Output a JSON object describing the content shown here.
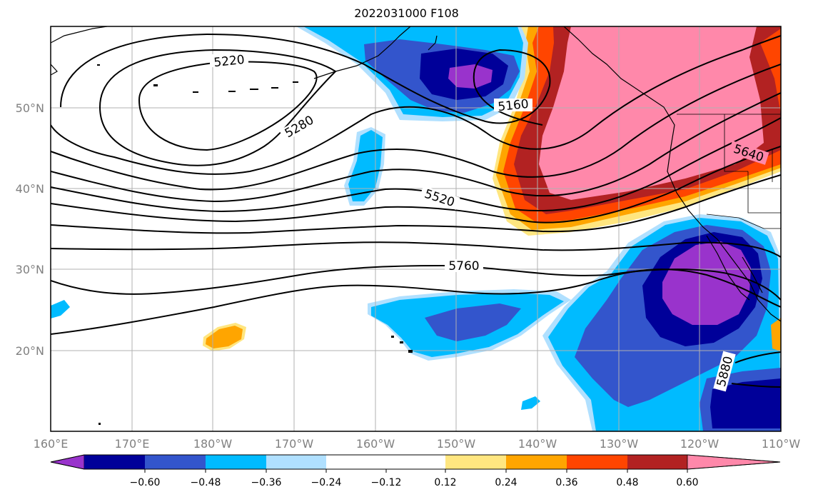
{
  "title": "2022031000 F108",
  "lon_ticks": [
    "160°E",
    "170°E",
    "180°W",
    "170°W",
    "160°W",
    "150°W",
    "140°W",
    "130°W",
    "120°W",
    "110°W"
  ],
  "lat_ticks": [
    "50°N",
    "40°N",
    "30°N",
    "20°N"
  ],
  "contour_labels": [
    "5220",
    "5280",
    "5160",
    "5520",
    "5640",
    "5760",
    "5880"
  ],
  "colorbar": {
    "ticks": [
      "−0.60",
      "−0.48",
      "−0.36",
      "−0.24",
      "−0.12",
      "0.12",
      "0.24",
      "0.36",
      "0.48",
      "0.60"
    ],
    "colors": [
      "#9933cc",
      "#000099",
      "#3355cc",
      "#00bbff",
      "#b0e0ff",
      "#ffffff",
      "#ffe680",
      "#ffa500",
      "#ff4500",
      "#b22222",
      "#ff88aa"
    ]
  },
  "colors": {
    "grid": "#b0b0b0",
    "tick_label": "#808080",
    "contour": "#000000"
  }
}
